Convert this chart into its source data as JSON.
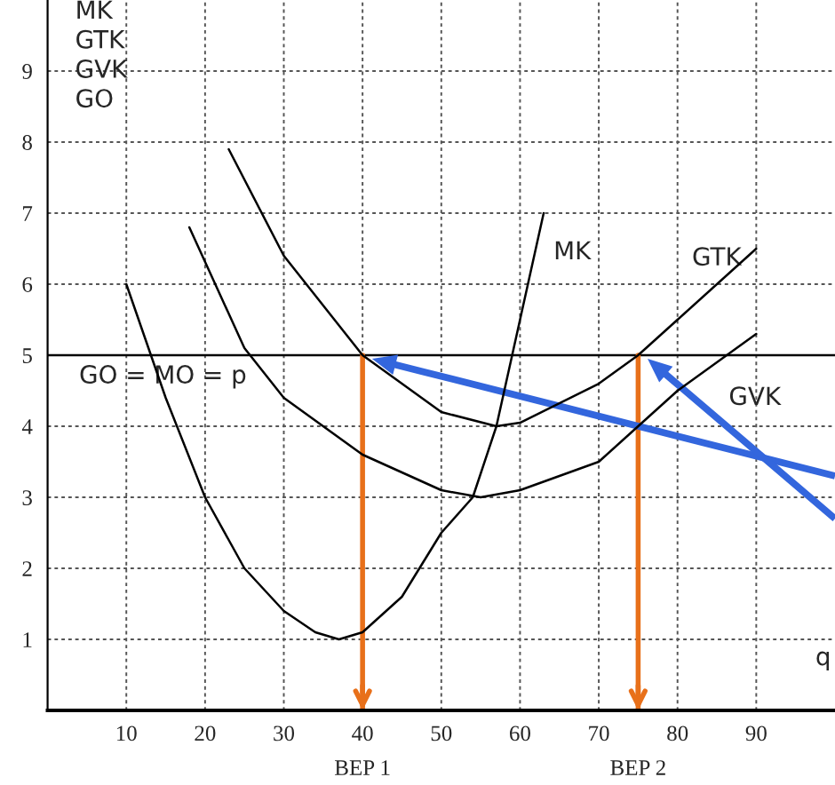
{
  "chart_data": {
    "type": "line",
    "xlabel": "q",
    "ylabel": "MK\nGTK\nGVK\nGO",
    "xlim": [
      0,
      100
    ],
    "ylim": [
      0,
      10
    ],
    "xticks": [
      10,
      20,
      30,
      40,
      50,
      60,
      70,
      80,
      90
    ],
    "yticks": [
      1,
      2,
      3,
      4,
      5,
      6,
      7,
      8,
      9
    ],
    "grid": true,
    "line_style": "solid",
    "marker": "none",
    "series": [
      {
        "name": "MK",
        "color": "#000000",
        "x": [
          10,
          15,
          20,
          25,
          30,
          34,
          37,
          40,
          45,
          50,
          54,
          57,
          59,
          61,
          63
        ],
        "values": [
          6,
          4.4,
          3,
          2,
          1.4,
          1.1,
          1,
          1.1,
          1.6,
          2.5,
          3,
          4,
          5,
          6,
          7
        ]
      },
      {
        "name": "GVK",
        "color": "#000000",
        "x": [
          18,
          25,
          30,
          40,
          50,
          55,
          60,
          70,
          75,
          80,
          90
        ],
        "values": [
          6.8,
          5.1,
          4.4,
          3.6,
          3.1,
          3,
          3.1,
          3.5,
          4,
          4.5,
          5.3
        ]
      },
      {
        "name": "GTK",
        "color": "#000000",
        "x": [
          23,
          30,
          40,
          50,
          57,
          60,
          70,
          75,
          80,
          90
        ],
        "values": [
          7.9,
          6.4,
          5,
          4.2,
          4,
          4.05,
          4.6,
          5,
          5.5,
          6.5
        ]
      }
    ],
    "ref_lines": [
      {
        "axis": "y",
        "value": 5,
        "label": "GO = MO = p",
        "color": "#000000"
      },
      {
        "axis": "x",
        "value": 40,
        "label": "BEP 1",
        "color": "#e8701a"
      },
      {
        "axis": "x",
        "value": 75,
        "label": "BEP 2",
        "color": "#e8701a"
      }
    ]
  }
}
